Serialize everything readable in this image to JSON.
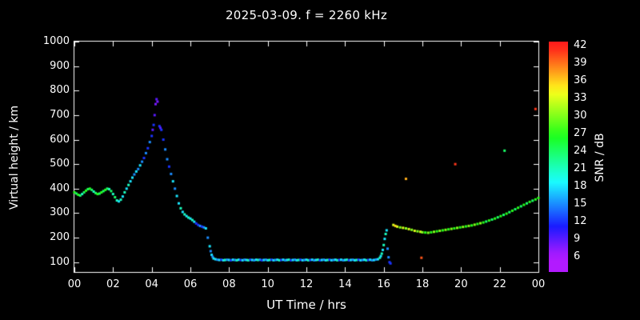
{
  "title": "2025-03-09. f = 2260 kHz",
  "axes": {
    "y_label": "Virtual height / km",
    "x_label": "UT Time / hrs",
    "y_tick_labels": [
      "1000",
      "900",
      "800",
      "700",
      "600",
      "500",
      "400",
      "300",
      "200",
      "100"
    ],
    "y_tick_values": [
      1000,
      900,
      800,
      700,
      600,
      500,
      400,
      300,
      200,
      100
    ],
    "x_tick_labels": [
      "00",
      "02",
      "04",
      "06",
      "08",
      "10",
      "12",
      "14",
      "16",
      "18",
      "20",
      "22",
      "00"
    ],
    "x_tick_values": [
      0,
      2,
      4,
      6,
      8,
      10,
      12,
      14,
      16,
      18,
      20,
      22,
      24
    ]
  },
  "colorbar": {
    "label": "SNR / dB",
    "tick_labels": [
      "42",
      "39",
      "36",
      "33",
      "30",
      "27",
      "24",
      "21",
      "18",
      "15",
      "12",
      "9",
      "6"
    ],
    "tick_values": [
      42,
      39,
      36,
      33,
      30,
      27,
      24,
      21,
      18,
      15,
      12,
      9,
      6
    ],
    "min": 6,
    "max": 42,
    "top_color": "#ff0000",
    "bottom_color": "#9500ff"
  },
  "chart_data": {
    "type": "scatter",
    "title": "2025-03-09. f = 2260 kHz",
    "xlabel": "UT Time / hrs",
    "ylabel": "Virtual height / km",
    "color_label": "SNR / dB",
    "xlim": [
      0,
      24
    ],
    "ylim": [
      60,
      1000
    ],
    "color_range": [
      6,
      42
    ],
    "grid": false,
    "point_format": [
      "ut_hr",
      "virtual_height_km",
      "snr_db"
    ],
    "points": [
      [
        0.0,
        385,
        27
      ],
      [
        0.1,
        380,
        24
      ],
      [
        0.2,
        375,
        27
      ],
      [
        0.3,
        372,
        24
      ],
      [
        0.4,
        378,
        21
      ],
      [
        0.5,
        385,
        24
      ],
      [
        0.6,
        392,
        27
      ],
      [
        0.7,
        398,
        24
      ],
      [
        0.8,
        400,
        27
      ],
      [
        0.9,
        395,
        24
      ],
      [
        1.0,
        388,
        21
      ],
      [
        1.1,
        382,
        24
      ],
      [
        1.2,
        378,
        27
      ],
      [
        1.3,
        380,
        24
      ],
      [
        1.4,
        385,
        27
      ],
      [
        1.5,
        390,
        24
      ],
      [
        1.6,
        395,
        27
      ],
      [
        1.7,
        400,
        24
      ],
      [
        1.8,
        398,
        21
      ],
      [
        1.9,
        390,
        24
      ],
      [
        2.0,
        378,
        21
      ],
      [
        2.1,
        365,
        24
      ],
      [
        2.2,
        352,
        21
      ],
      [
        2.3,
        348,
        18
      ],
      [
        2.4,
        355,
        21
      ],
      [
        2.5,
        368,
        18
      ],
      [
        2.6,
        385,
        21
      ],
      [
        2.7,
        400,
        18
      ],
      [
        2.8,
        415,
        21
      ],
      [
        2.9,
        430,
        18
      ],
      [
        3.0,
        445,
        18
      ],
      [
        3.1,
        458,
        15
      ],
      [
        3.2,
        470,
        18
      ],
      [
        3.3,
        480,
        15
      ],
      [
        3.4,
        495,
        18
      ],
      [
        3.5,
        510,
        15
      ],
      [
        3.6,
        525,
        12
      ],
      [
        3.7,
        545,
        15
      ],
      [
        3.8,
        565,
        12
      ],
      [
        3.9,
        590,
        15
      ],
      [
        4.0,
        615,
        12
      ],
      [
        4.05,
        640,
        9
      ],
      [
        4.1,
        660,
        12
      ],
      [
        4.15,
        700,
        9
      ],
      [
        4.2,
        745,
        8
      ],
      [
        4.25,
        765,
        9
      ],
      [
        4.3,
        755,
        8
      ],
      [
        4.4,
        655,
        12
      ],
      [
        4.45,
        648,
        9
      ],
      [
        4.5,
        640,
        12
      ],
      [
        4.6,
        600,
        12
      ],
      [
        4.7,
        560,
        15
      ],
      [
        4.8,
        520,
        15
      ],
      [
        4.9,
        490,
        12
      ],
      [
        5.0,
        460,
        15
      ],
      [
        5.1,
        430,
        18
      ],
      [
        5.2,
        400,
        15
      ],
      [
        5.3,
        370,
        18
      ],
      [
        5.4,
        340,
        18
      ],
      [
        5.5,
        320,
        21
      ],
      [
        5.6,
        305,
        18
      ],
      [
        5.7,
        295,
        21
      ],
      [
        5.8,
        288,
        18
      ],
      [
        5.9,
        282,
        21
      ],
      [
        6.0,
        278,
        18
      ],
      [
        6.1,
        272,
        21
      ],
      [
        6.2,
        265,
        18
      ],
      [
        6.3,
        258,
        12
      ],
      [
        6.4,
        252,
        12
      ],
      [
        6.5,
        248,
        15
      ],
      [
        6.6,
        245,
        12
      ],
      [
        6.7,
        242,
        15
      ],
      [
        6.8,
        238,
        18
      ],
      [
        6.9,
        200,
        15
      ],
      [
        7.0,
        165,
        18
      ],
      [
        7.05,
        145,
        15
      ],
      [
        7.1,
        130,
        18
      ],
      [
        7.15,
        122,
        15
      ],
      [
        7.2,
        115,
        18
      ],
      [
        7.3,
        112,
        18
      ],
      [
        7.4,
        110,
        15
      ],
      [
        7.5,
        109,
        18
      ],
      [
        7.6,
        110,
        12
      ],
      [
        7.7,
        108,
        18
      ],
      [
        7.8,
        109,
        21
      ],
      [
        7.9,
        110,
        15
      ],
      [
        8.0,
        109,
        18
      ],
      [
        8.1,
        108,
        12
      ],
      [
        8.2,
        110,
        18
      ],
      [
        8.3,
        109,
        15
      ],
      [
        8.4,
        108,
        21
      ],
      [
        8.5,
        110,
        18
      ],
      [
        8.6,
        109,
        12
      ],
      [
        8.7,
        108,
        18
      ],
      [
        8.8,
        110,
        15
      ],
      [
        8.9,
        109,
        18
      ],
      [
        9.0,
        108,
        21
      ],
      [
        9.1,
        110,
        12
      ],
      [
        9.2,
        109,
        18
      ],
      [
        9.3,
        108,
        15
      ],
      [
        9.4,
        110,
        18
      ],
      [
        9.5,
        109,
        21
      ],
      [
        9.6,
        110,
        15
      ],
      [
        9.7,
        108,
        12
      ],
      [
        9.8,
        109,
        18
      ],
      [
        9.9,
        110,
        15
      ],
      [
        10.0,
        108,
        18
      ],
      [
        10.1,
        109,
        21
      ],
      [
        10.2,
        110,
        12
      ],
      [
        10.3,
        108,
        18
      ],
      [
        10.4,
        109,
        15
      ],
      [
        10.5,
        110,
        18
      ],
      [
        10.6,
        108,
        21
      ],
      [
        10.7,
        109,
        12
      ],
      [
        10.8,
        110,
        18
      ],
      [
        10.9,
        108,
        15
      ],
      [
        11.0,
        109,
        18
      ],
      [
        11.1,
        110,
        21
      ],
      [
        11.2,
        108,
        12
      ],
      [
        11.3,
        109,
        18
      ],
      [
        11.4,
        110,
        15
      ],
      [
        11.5,
        108,
        18
      ],
      [
        11.6,
        109,
        21
      ],
      [
        11.7,
        110,
        12
      ],
      [
        11.8,
        108,
        18
      ],
      [
        11.9,
        109,
        15
      ],
      [
        12.0,
        110,
        18
      ],
      [
        12.1,
        108,
        21
      ],
      [
        12.2,
        109,
        12
      ],
      [
        12.3,
        110,
        18
      ],
      [
        12.4,
        108,
        15
      ],
      [
        12.5,
        109,
        18
      ],
      [
        12.6,
        110,
        21
      ],
      [
        12.7,
        108,
        12
      ],
      [
        12.8,
        109,
        18
      ],
      [
        12.9,
        110,
        15
      ],
      [
        13.0,
        108,
        18
      ],
      [
        13.1,
        109,
        21
      ],
      [
        13.2,
        110,
        12
      ],
      [
        13.3,
        108,
        18
      ],
      [
        13.4,
        109,
        15
      ],
      [
        13.5,
        110,
        18
      ],
      [
        13.6,
        108,
        21
      ],
      [
        13.7,
        109,
        12
      ],
      [
        13.8,
        110,
        18
      ],
      [
        13.9,
        108,
        15
      ],
      [
        14.0,
        109,
        18
      ],
      [
        14.1,
        110,
        21
      ],
      [
        14.2,
        108,
        12
      ],
      [
        14.3,
        109,
        18
      ],
      [
        14.4,
        110,
        15
      ],
      [
        14.5,
        108,
        18
      ],
      [
        14.6,
        109,
        21
      ],
      [
        14.7,
        110,
        12
      ],
      [
        14.8,
        108,
        18
      ],
      [
        14.9,
        109,
        15
      ],
      [
        15.0,
        110,
        18
      ],
      [
        15.1,
        108,
        21
      ],
      [
        15.2,
        109,
        12
      ],
      [
        15.3,
        110,
        18
      ],
      [
        15.4,
        108,
        15
      ],
      [
        15.5,
        109,
        18
      ],
      [
        15.6,
        111,
        15
      ],
      [
        15.7,
        112,
        18
      ],
      [
        15.8,
        118,
        21
      ],
      [
        15.85,
        125,
        18
      ],
      [
        15.9,
        135,
        21
      ],
      [
        15.95,
        150,
        18
      ],
      [
        16.0,
        170,
        21
      ],
      [
        16.05,
        195,
        18
      ],
      [
        16.1,
        215,
        21
      ],
      [
        16.15,
        230,
        18
      ],
      [
        16.2,
        155,
        15
      ],
      [
        16.25,
        120,
        15
      ],
      [
        16.3,
        100,
        12
      ],
      [
        16.35,
        95,
        12
      ],
      [
        16.5,
        252,
        33
      ],
      [
        16.6,
        248,
        36
      ],
      [
        16.7,
        245,
        33
      ],
      [
        16.85,
        242,
        30
      ],
      [
        17.0,
        240,
        33
      ],
      [
        17.15,
        238,
        30
      ],
      [
        17.3,
        235,
        33
      ],
      [
        17.45,
        232,
        30
      ],
      [
        17.6,
        228,
        33
      ],
      [
        17.75,
        226,
        30
      ],
      [
        17.9,
        224,
        33
      ],
      [
        18.0,
        222,
        30
      ],
      [
        18.15,
        221,
        27
      ],
      [
        18.3,
        220,
        30
      ],
      [
        18.45,
        222,
        27
      ],
      [
        18.6,
        224,
        30
      ],
      [
        18.75,
        226,
        27
      ],
      [
        18.9,
        228,
        30
      ],
      [
        19.05,
        230,
        27
      ],
      [
        19.2,
        232,
        30
      ],
      [
        19.35,
        234,
        27
      ],
      [
        19.5,
        236,
        30
      ],
      [
        19.65,
        238,
        27
      ],
      [
        19.8,
        240,
        30
      ],
      [
        19.95,
        242,
        27
      ],
      [
        20.1,
        244,
        30
      ],
      [
        20.25,
        246,
        27
      ],
      [
        20.4,
        248,
        30
      ],
      [
        20.55,
        250,
        27
      ],
      [
        20.7,
        253,
        30
      ],
      [
        20.85,
        256,
        27
      ],
      [
        21.0,
        259,
        30
      ],
      [
        21.15,
        262,
        27
      ],
      [
        21.3,
        266,
        24
      ],
      [
        21.45,
        270,
        27
      ],
      [
        21.6,
        274,
        24
      ],
      [
        21.75,
        278,
        27
      ],
      [
        21.9,
        283,
        24
      ],
      [
        22.05,
        288,
        27
      ],
      [
        22.2,
        293,
        24
      ],
      [
        22.35,
        298,
        27
      ],
      [
        22.5,
        304,
        24
      ],
      [
        22.65,
        310,
        27
      ],
      [
        22.8,
        316,
        24
      ],
      [
        22.95,
        322,
        27
      ],
      [
        23.1,
        328,
        24
      ],
      [
        23.25,
        334,
        27
      ],
      [
        23.4,
        340,
        24
      ],
      [
        23.55,
        346,
        27
      ],
      [
        23.7,
        351,
        24
      ],
      [
        23.85,
        356,
        27
      ],
      [
        24.0,
        362,
        27
      ],
      [
        17.15,
        440,
        37
      ],
      [
        19.7,
        500,
        41
      ],
      [
        22.25,
        555,
        24
      ],
      [
        23.85,
        725,
        41
      ],
      [
        17.95,
        118,
        40
      ]
    ]
  }
}
